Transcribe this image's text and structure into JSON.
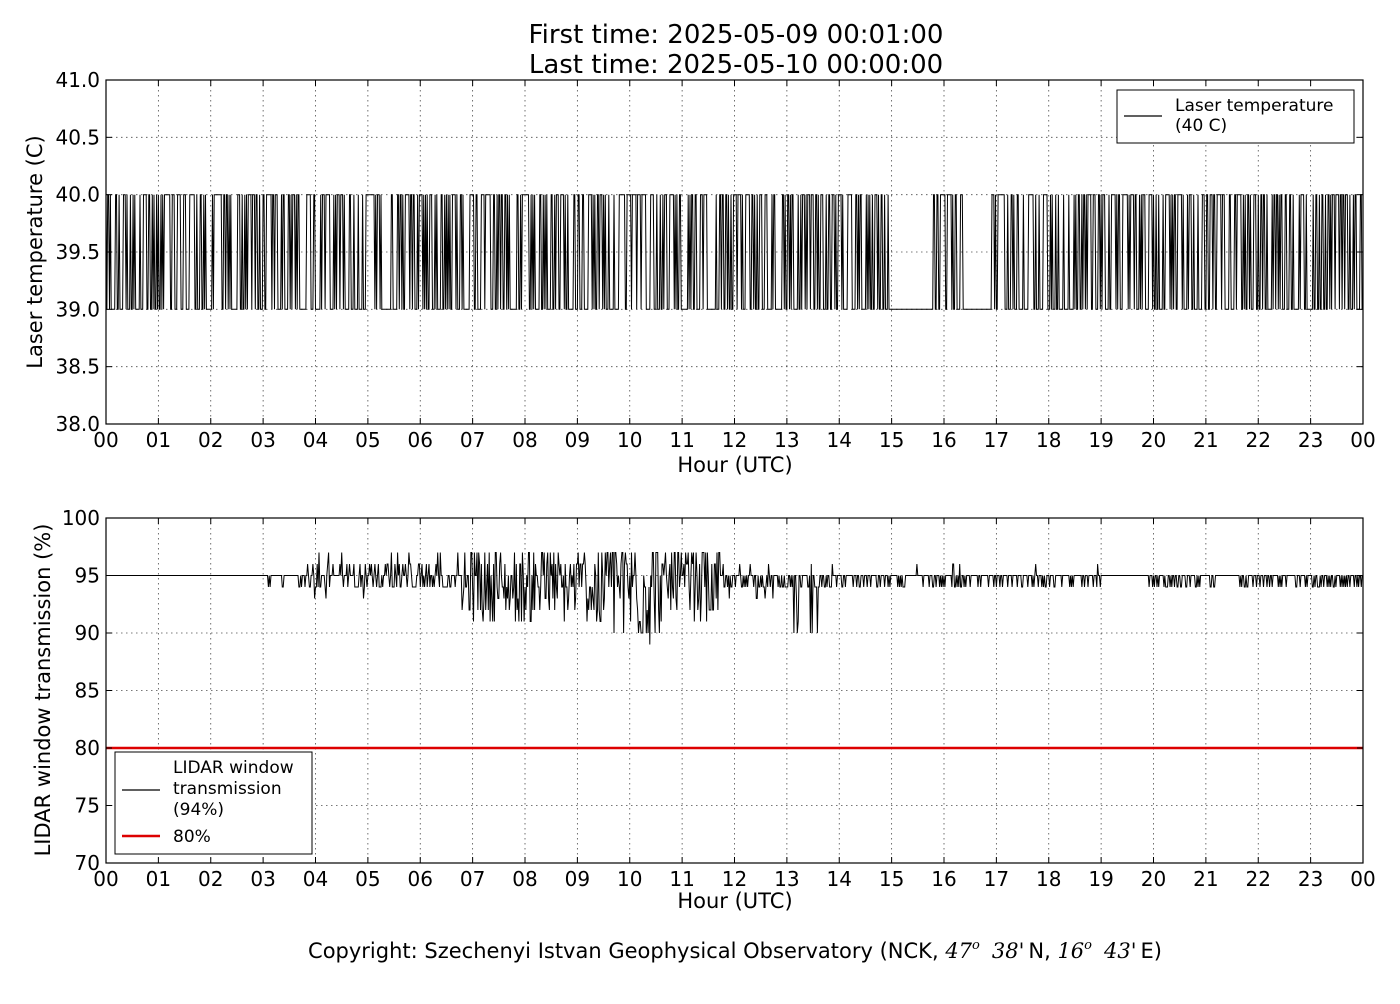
{
  "figure": {
    "title_line1": "First time: 2025-05-09 00:01:00",
    "title_line2": "Last time: 2025-05-10 00:00:00",
    "footer": {
      "prefix": "Copyright: Szechenyi Istvan Geophysical Observatory (NCK, ",
      "lat_deg": "47",
      "lat_min": "38'",
      "lat_hem": "N, ",
      "lon_deg": "16",
      "lon_min": "43'",
      "lon_hem": "E)",
      "degree_symbol": "o"
    }
  },
  "chart_data": [
    {
      "type": "line",
      "xlabel": "Hour (UTC)",
      "ylabel": "Laser temperature (C)",
      "xlim": [
        0,
        24
      ],
      "ylim": [
        38.0,
        41.0
      ],
      "x_ticks": [
        "00",
        "01",
        "02",
        "03",
        "04",
        "05",
        "06",
        "07",
        "08",
        "09",
        "10",
        "11",
        "12",
        "13",
        "14",
        "15",
        "16",
        "17",
        "18",
        "19",
        "20",
        "21",
        "22",
        "23",
        "00"
      ],
      "y_ticks": [
        "38.0",
        "38.5",
        "39.0",
        "39.5",
        "40.0",
        "40.5",
        "41.0"
      ],
      "grid": true,
      "legend_position": "top-right",
      "series": [
        {
          "name": "Laser temperature (40 C)",
          "legend_line1": "Laser temperature",
          "legend_line2": "(40 C)",
          "color": "#000000",
          "low_value": 39.0,
          "high_value": 40.0,
          "pattern": "switches between 39.0 and 40.0 through the day; steady at 39.0 from about 15.0 to 15.7 h and from about 16.4 to 16.9 h"
        }
      ]
    },
    {
      "type": "line",
      "xlabel": "Hour (UTC)",
      "ylabel": "LIDAR window transmission (%)",
      "xlim": [
        0,
        24
      ],
      "ylim": [
        70,
        100
      ],
      "x_ticks": [
        "00",
        "01",
        "02",
        "03",
        "04",
        "05",
        "06",
        "07",
        "08",
        "09",
        "10",
        "11",
        "12",
        "13",
        "14",
        "15",
        "16",
        "17",
        "18",
        "19",
        "20",
        "21",
        "22",
        "23",
        "00"
      ],
      "y_ticks": [
        "70",
        "75",
        "80",
        "85",
        "90",
        "95",
        "100"
      ],
      "grid": true,
      "legend_position": "lower-left",
      "series": [
        {
          "name": "LIDAR window transmission (94%)",
          "legend_line1": "LIDAR window",
          "legend_line2": "transmission",
          "legend_line3": "(94%)",
          "color": "#000000",
          "baseline": 95,
          "pattern": "flat at 95 until about 03 h; fluctuates between about 89 and 97 from 04 h to 14 h, largest dips around 10 h; mostly 94-95 afterwards"
        },
        {
          "name": "80%",
          "color": "#dd0000",
          "value": 80
        }
      ]
    }
  ]
}
